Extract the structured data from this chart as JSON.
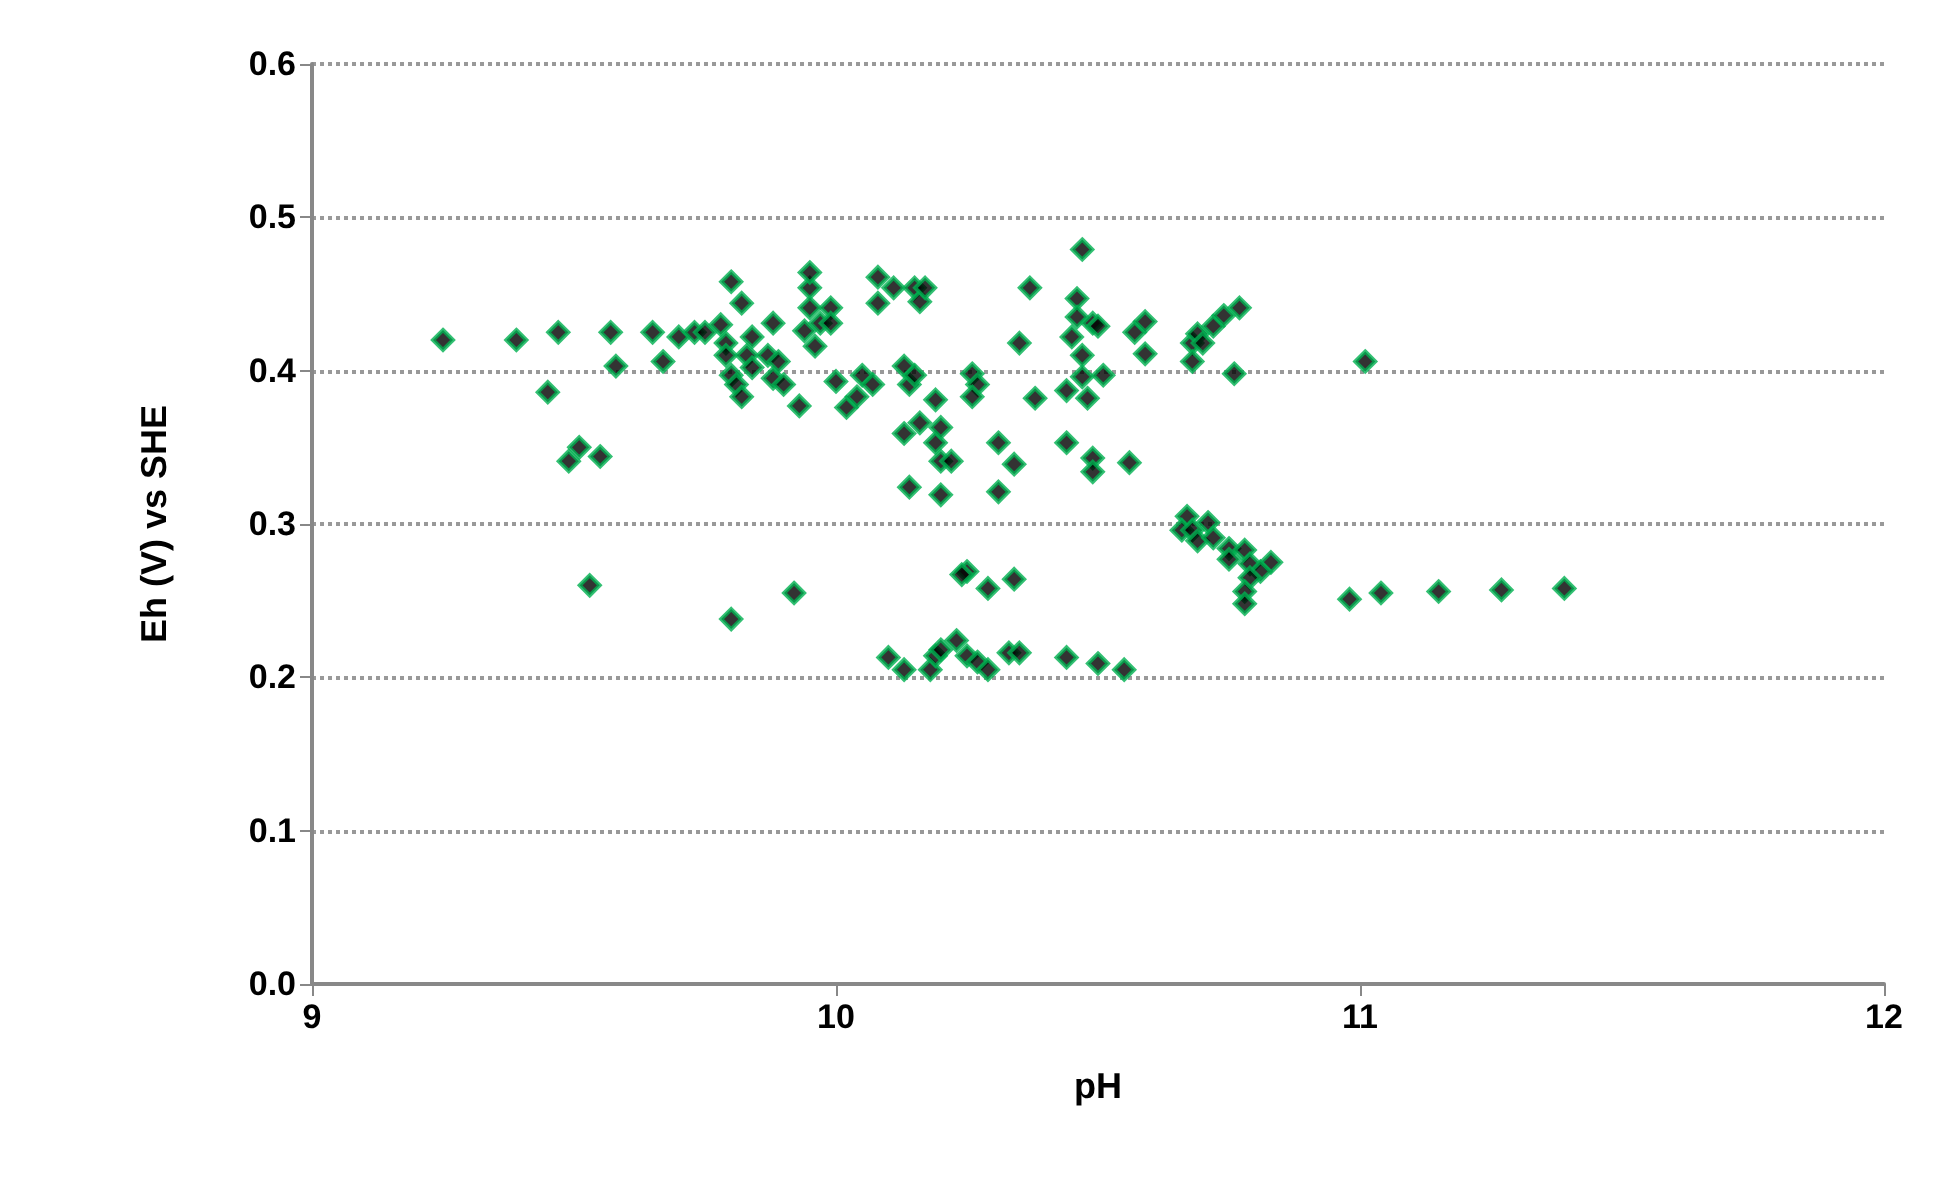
{
  "chart_data": {
    "type": "scatter",
    "xlabel": "pH",
    "ylabel": "Eh (V) vs SHE",
    "marker": "diamond",
    "grid": "y",
    "xlim": [
      9,
      12
    ],
    "xticks": [
      9,
      10,
      11,
      12
    ],
    "ylim": [
      0,
      0.6
    ],
    "yticks": [
      {
        "value": 0,
        "label": "0.0"
      },
      {
        "value": 0.1,
        "label": "0.1"
      },
      {
        "value": 0.2,
        "label": "0.2"
      },
      {
        "value": 0.3,
        "label": "0.3"
      },
      {
        "value": 0.4,
        "label": "0.4"
      },
      {
        "value": 0.5,
        "label": "0.5"
      },
      {
        "value": 0.6,
        "label": "0.6"
      }
    ],
    "series": [
      {
        "color": "#000000",
        "x": [
          9.25,
          9.39,
          9.47,
          9.45,
          9.49,
          9.51,
          9.55,
          9.53,
          9.57,
          9.58,
          9.65,
          9.67,
          9.7,
          9.73,
          9.75,
          9.78,
          9.79,
          9.8,
          9.79,
          9.8,
          9.81,
          9.82,
          9.83,
          9.84,
          9.82,
          9.84,
          9.87,
          9.88,
          9.88,
          9.89,
          9.9,
          9.93,
          9.94,
          9.95,
          9.95,
          9.95,
          9.96,
          9.97,
          9.99,
          9.99,
          10.0,
          10.02,
          9.92,
          9.8,
          10.04,
          10.05,
          10.07,
          10.08,
          10.08,
          10.11,
          10.13,
          10.15,
          10.16,
          10.17,
          10.14,
          10.15,
          10.13,
          10.16,
          10.14,
          10.19,
          10.2,
          10.2,
          10.2,
          10.19,
          10.22,
          10.26,
          10.27,
          10.26,
          10.31,
          10.31,
          10.34,
          10.35,
          10.37,
          10.38,
          10.44,
          10.44,
          10.47,
          10.45,
          10.46,
          10.46,
          10.47,
          10.47,
          10.49,
          10.48,
          10.49,
          10.49,
          10.5,
          10.51,
          10.56,
          10.57,
          10.59,
          10.59,
          10.68,
          10.69,
          10.7,
          10.72,
          10.74,
          10.77,
          10.76,
          10.68,
          11.01,
          10.25,
          10.24,
          10.29,
          10.34,
          10.1,
          10.13,
          10.18,
          10.19,
          10.2,
          10.23,
          10.25,
          10.27,
          10.29,
          10.33,
          10.35,
          10.44,
          10.5,
          10.55,
          10.67,
          10.71,
          10.66,
          10.68,
          10.69,
          10.72,
          10.75,
          10.78,
          10.75,
          10.79,
          10.83,
          10.81,
          10.79,
          10.78,
          10.78,
          10.98,
          11.04,
          11.15,
          11.27,
          11.39
        ],
        "values": [
          0.42,
          0.42,
          0.425,
          0.386,
          0.341,
          0.35,
          0.344,
          0.26,
          0.425,
          0.403,
          0.425,
          0.406,
          0.422,
          0.425,
          0.425,
          0.43,
          0.418,
          0.397,
          0.41,
          0.458,
          0.391,
          0.383,
          0.41,
          0.402,
          0.444,
          0.422,
          0.41,
          0.431,
          0.395,
          0.406,
          0.391,
          0.377,
          0.426,
          0.454,
          0.464,
          0.441,
          0.416,
          0.431,
          0.441,
          0.431,
          0.393,
          0.376,
          0.255,
          0.238,
          0.383,
          0.397,
          0.391,
          0.444,
          0.461,
          0.454,
          0.403,
          0.454,
          0.445,
          0.454,
          0.391,
          0.397,
          0.359,
          0.366,
          0.324,
          0.353,
          0.341,
          0.319,
          0.363,
          0.381,
          0.341,
          0.398,
          0.391,
          0.383,
          0.321,
          0.353,
          0.339,
          0.418,
          0.454,
          0.382,
          0.387,
          0.353,
          0.479,
          0.422,
          0.447,
          0.435,
          0.41,
          0.396,
          0.431,
          0.382,
          0.343,
          0.334,
          0.429,
          0.397,
          0.34,
          0.425,
          0.432,
          0.411,
          0.418,
          0.424,
          0.418,
          0.429,
          0.436,
          0.441,
          0.398,
          0.406,
          0.406,
          0.269,
          0.267,
          0.258,
          0.264,
          0.213,
          0.205,
          0.205,
          0.214,
          0.218,
          0.224,
          0.214,
          0.21,
          0.205,
          0.216,
          0.216,
          0.213,
          0.209,
          0.205,
          0.305,
          0.301,
          0.296,
          0.296,
          0.289,
          0.291,
          0.284,
          0.283,
          0.277,
          0.274,
          0.275,
          0.269,
          0.265,
          0.256,
          0.248,
          0.251,
          0.255,
          0.256,
          0.257,
          0.258
        ]
      }
    ]
  }
}
